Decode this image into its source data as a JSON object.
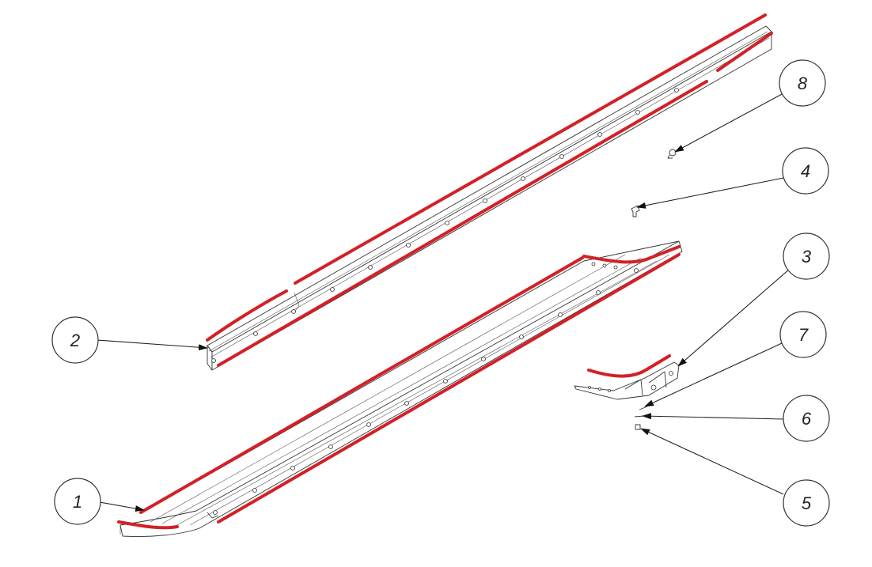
{
  "diagram": {
    "callouts": [
      {
        "id": "c1",
        "label": "1"
      },
      {
        "id": "c2",
        "label": "2"
      },
      {
        "id": "c3",
        "label": "3"
      },
      {
        "id": "c4",
        "label": "4"
      },
      {
        "id": "c5",
        "label": "5"
      },
      {
        "id": "c6",
        "label": "6"
      },
      {
        "id": "c7",
        "label": "7"
      },
      {
        "id": "c8",
        "label": "8"
      }
    ],
    "colors": {
      "highlight": "#d32027",
      "outline": "#333333",
      "background": "#ffffff"
    }
  }
}
